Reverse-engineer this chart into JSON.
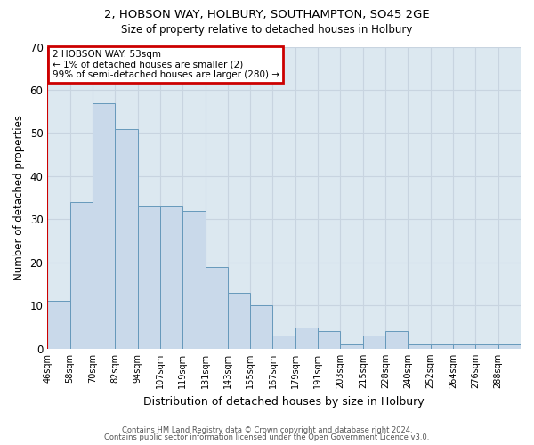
{
  "title1": "2, HOBSON WAY, HOLBURY, SOUTHAMPTON, SO45 2GE",
  "title2": "Size of property relative to detached houses in Holbury",
  "xlabel": "Distribution of detached houses by size in Holbury",
  "ylabel": "Number of detached properties",
  "footnote1": "Contains HM Land Registry data © Crown copyright and database right 2024.",
  "footnote2": "Contains public sector information licensed under the Open Government Licence v3.0.",
  "bin_labels": [
    "46sqm",
    "58sqm",
    "70sqm",
    "82sqm",
    "94sqm",
    "107sqm",
    "119sqm",
    "131sqm",
    "143sqm",
    "155sqm",
    "167sqm",
    "179sqm",
    "191sqm",
    "203sqm",
    "215sqm",
    "228sqm",
    "240sqm",
    "252sqm",
    "264sqm",
    "276sqm",
    "288sqm"
  ],
  "bar_heights": [
    11,
    34,
    57,
    51,
    33,
    33,
    32,
    19,
    13,
    10,
    3,
    5,
    4,
    1,
    3,
    4,
    1,
    1,
    1,
    1,
    1
  ],
  "bar_color": "#c9d9ea",
  "bar_edge_color": "#6699bb",
  "grid_color": "#c8d4e0",
  "plot_bg_color": "#dce8f0",
  "annotation_box_text": "2 HOBSON WAY: 53sqm\n← 1% of detached houses are smaller (2)\n99% of semi-detached houses are larger (280) →",
  "annotation_box_color": "#ffffff",
  "annotation_box_edge_color": "#cc0000",
  "red_line_x": 0,
  "ylim": [
    0,
    70
  ],
  "yticks": [
    0,
    10,
    20,
    30,
    40,
    50,
    60,
    70
  ],
  "background_color": "#ffffff"
}
